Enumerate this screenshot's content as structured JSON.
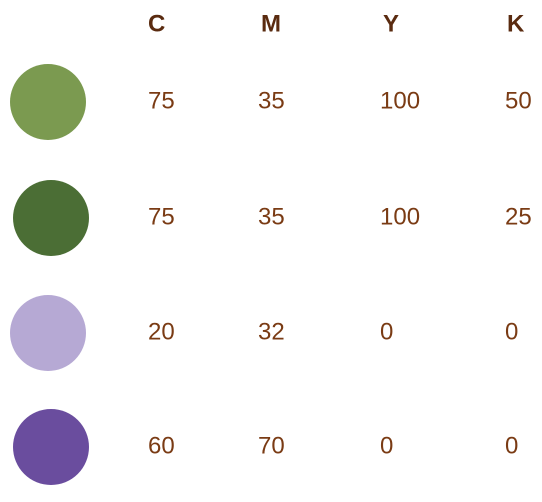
{
  "table": {
    "columns": [
      "C",
      "M",
      "Y",
      "K"
    ],
    "rows": [
      {
        "color": "#7b9a50",
        "values": [
          75,
          35,
          100,
          50
        ]
      },
      {
        "color": "#4b6e35",
        "values": [
          75,
          35,
          100,
          25
        ]
      },
      {
        "color": "#b6a9d4",
        "values": [
          20,
          32,
          0,
          0
        ]
      },
      {
        "color": "#6a4d9e",
        "values": [
          60,
          70,
          0,
          0
        ]
      }
    ]
  }
}
